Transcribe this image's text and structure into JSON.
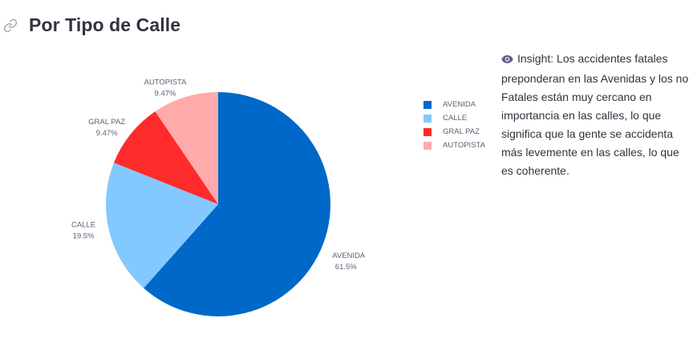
{
  "header": {
    "title": "Por Tipo de Calle",
    "icon": "link-icon"
  },
  "insight": {
    "icon": "eye-icon",
    "text": "Insight: Los accidentes fatales preponderan en las Avenidas y los no Fatales están muy cercano en importancia en las calles, lo que significa que la gente se accidenta más levemente en las calles, lo que es coherente."
  },
  "chart_data": {
    "type": "pie",
    "title": "",
    "slices": [
      {
        "name": "AVENIDA",
        "value": 61.5,
        "label": "61.5%",
        "color": "#0068c9"
      },
      {
        "name": "CALLE",
        "value": 19.5,
        "label": "19.5%",
        "color": "#83c9ff"
      },
      {
        "name": "GRAL PAZ",
        "value": 9.47,
        "label": "9.47%",
        "color": "#ff2b2b"
      },
      {
        "name": "AUTOPISTA",
        "value": 9.47,
        "label": "9.47%",
        "color": "#ffabab"
      }
    ],
    "legend": {
      "placement": "right"
    }
  }
}
